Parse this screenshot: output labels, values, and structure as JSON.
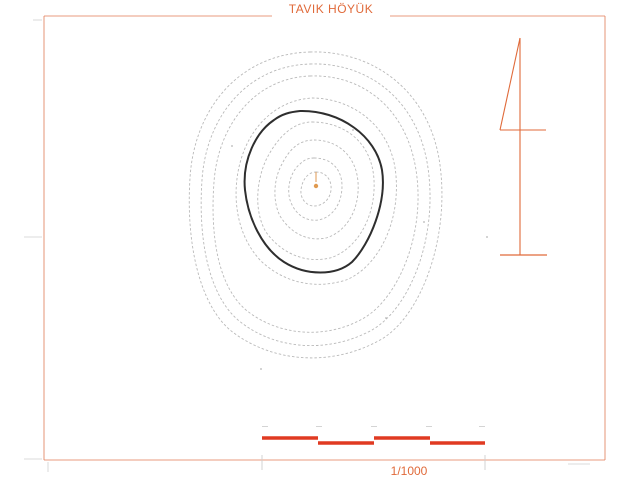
{
  "map": {
    "title": "TAVIK HÖYÜK",
    "scale_text": "1/1000",
    "colors": {
      "frame": "#e07a55",
      "title": "#e06a3a",
      "contour": "#b9b9b9",
      "index_contour": "#2e2e2e",
      "scale_bar": "#e03a22",
      "north_arrow": "#e06a3a",
      "summit": "#e09a50"
    },
    "icons": {
      "north_arrow": "north-arrow-icon",
      "summit_marker": "summit-marker-icon"
    },
    "contours": {
      "count": 9,
      "index_contour_rank": 4
    },
    "scale_bar": {
      "segments": 4
    }
  }
}
